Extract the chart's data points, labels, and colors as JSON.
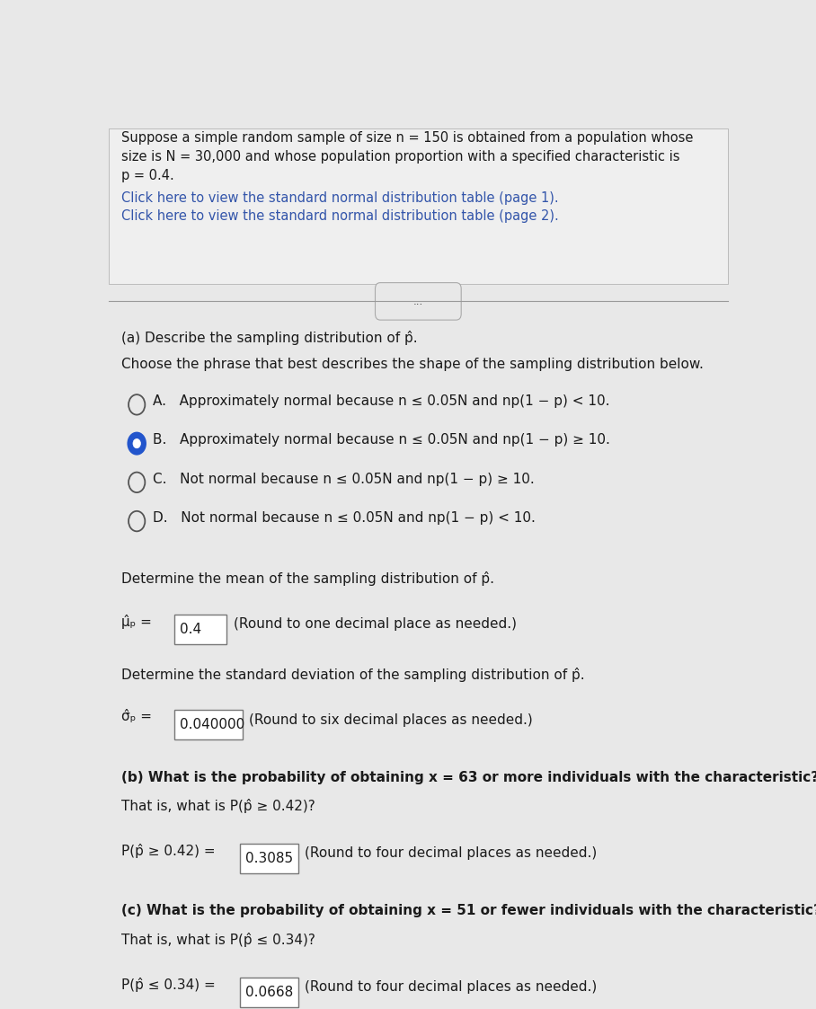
{
  "bg_color": "#e8e8e8",
  "header_text_line1": "Suppose a simple random sample of size n = 150 is obtained from a population whose",
  "header_text_line2": "size is N = 30,000 and whose population proportion with a specified characteristic is",
  "header_text_line3": "p = 0.4.",
  "link1": "Click here to view the standard normal distribution table (page 1).",
  "link2": "Click here to view the standard normal distribution table (page 2).",
  "divider_text": "...",
  "part_a_title": "(a) Describe the sampling distribution of p̂.",
  "part_a_subtitle": "Choose the phrase that best describes the shape of the sampling distribution below.",
  "option_A": "A.   Approximately normal because n ≤ 0.05N and np(1 − p) < 10.",
  "option_B": "B.   Approximately normal because n ≤ 0.05N and np(1 − p) ≥ 10.",
  "option_C": "C.   Not normal because n ≤ 0.05N and np(1 − p) ≥ 10.",
  "option_D": "D.   Not normal because n ≤ 0.05N and np(1 − p) < 10.",
  "selected_option": "B",
  "mean_label": "Determine the mean of the sampling distribution of p̂.",
  "mean_val": "0.4",
  "mean_note": "(Round to one decimal place as needed.)",
  "sd_label": "Determine the standard deviation of the sampling distribution of p̂.",
  "sd_val": "0.040000",
  "sd_note": "(Round to six decimal places as needed.)",
  "part_b_line1": "(b) What is the probability of obtaining x = 63 or more individuals with the characteristic?",
  "part_b_line2": "That is, what is P(p̂ ≥ 0.42)?",
  "part_b_eq": "P(p̂ ≥ 0.42) = ",
  "part_b_val": "0.3085",
  "part_b_note": "(Round to four decimal places as needed.)",
  "part_c_line1": "(c) What is the probability of obtaining x = 51 or fewer individuals with the characteristic?",
  "part_c_line2": "That is, what is P(p̂ ≤ 0.34)?",
  "part_c_eq": "P(p̂ ≤ 0.34) = ",
  "part_c_val": "0.0668",
  "part_c_note": "(Round to four decimal places as needed.)",
  "link_color": "#3355aa",
  "text_color": "#1a1a1a",
  "box_color": "#ffffff",
  "box_border": "#777777",
  "radio_selected_color": "#2255cc",
  "radio_unselected_color": "#555555"
}
